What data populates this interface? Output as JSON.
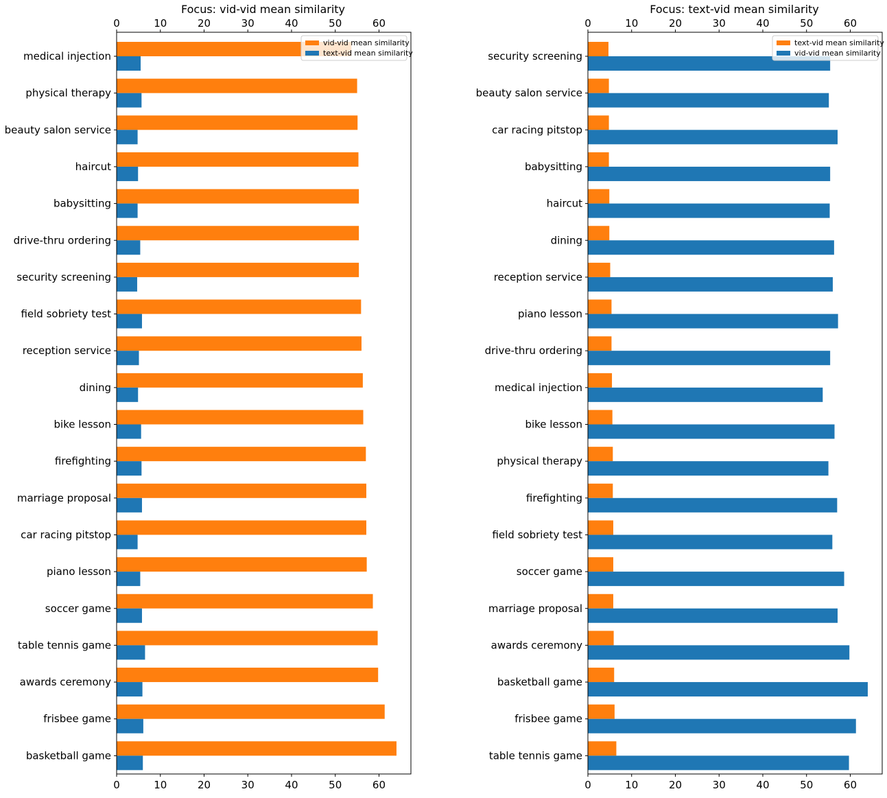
{
  "colors": {
    "orange": "#ff7f0e",
    "blue": "#1f77b4"
  },
  "chart_data": [
    {
      "type": "bar",
      "orientation": "horizontal",
      "title": "Focus: vid-vid mean similarity",
      "xlabel": "",
      "ylabel": "",
      "xlim": [
        0,
        67.3
      ],
      "xticks": [
        0,
        10,
        20,
        30,
        40,
        50,
        60
      ],
      "xaxis_top_and_bottom": true,
      "legend_position": "upper-right",
      "categories": [
        "medical injection",
        "physical therapy",
        "beauty salon service",
        "haircut",
        "babysitting",
        "drive-thru ordering",
        "security screening",
        "field sobriety test",
        "reception service",
        "dining",
        "bike lesson",
        "firefighting",
        "marriage proposal",
        "car racing pitstop",
        "piano lesson",
        "soccer game",
        "table tennis game",
        "awards ceremony",
        "frisbee game",
        "basketball game"
      ],
      "series": [
        {
          "name": "vid-vid mean similarity",
          "color": "#ff7f0e",
          "values": [
            53.7,
            55.0,
            55.1,
            55.3,
            55.4,
            55.4,
            55.4,
            55.9,
            56.0,
            56.3,
            56.4,
            57.0,
            57.1,
            57.1,
            57.2,
            58.6,
            59.7,
            59.8,
            61.3,
            64.0
          ]
        },
        {
          "name": "text-vid mean similarity",
          "color": "#1f77b4",
          "values": [
            5.5,
            5.7,
            4.8,
            4.9,
            4.8,
            5.4,
            4.7,
            5.8,
            5.1,
            4.9,
            5.6,
            5.7,
            5.8,
            4.8,
            5.4,
            5.8,
            6.5,
            5.9,
            6.1,
            6.0
          ]
        }
      ]
    },
    {
      "type": "bar",
      "orientation": "horizontal",
      "title": "Focus: text-vid mean similarity",
      "xlabel": "",
      "ylabel": "",
      "xlim": [
        0,
        67.3
      ],
      "xticks": [
        0,
        10,
        20,
        30,
        40,
        50,
        60
      ],
      "xaxis_top_and_bottom": true,
      "legend_position": "upper-right",
      "categories": [
        "security screening",
        "beauty salon service",
        "car racing pitstop",
        "babysitting",
        "haircut",
        "dining",
        "reception service",
        "piano lesson",
        "drive-thru ordering",
        "medical injection",
        "bike lesson",
        "physical therapy",
        "firefighting",
        "field sobriety test",
        "soccer game",
        "marriage proposal",
        "awards ceremony",
        "basketball game",
        "frisbee game",
        "table tennis game"
      ],
      "series": [
        {
          "name": "text-vid mean similarity",
          "color": "#ff7f0e",
          "values": [
            4.7,
            4.8,
            4.8,
            4.8,
            4.9,
            4.9,
            5.1,
            5.4,
            5.4,
            5.5,
            5.6,
            5.7,
            5.7,
            5.8,
            5.8,
            5.8,
            5.9,
            6.0,
            6.1,
            6.5
          ]
        },
        {
          "name": "vid-vid mean similarity",
          "color": "#1f77b4",
          "values": [
            55.4,
            55.1,
            57.1,
            55.4,
            55.3,
            56.3,
            56.0,
            57.2,
            55.4,
            53.7,
            56.4,
            55.0,
            57.0,
            55.9,
            58.6,
            57.1,
            59.8,
            64.0,
            61.3,
            59.7
          ]
        }
      ]
    }
  ]
}
